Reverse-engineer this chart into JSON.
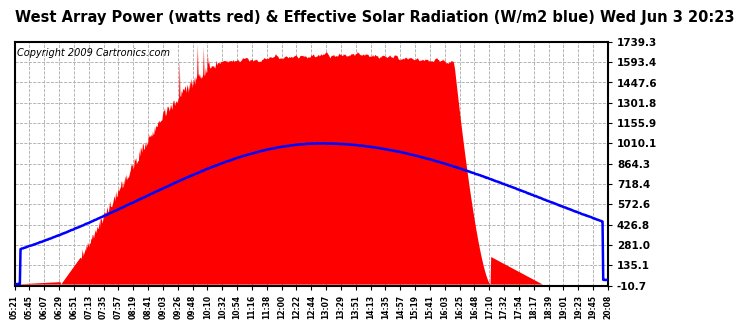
{
  "title": "West Array Power (watts red) & Effective Solar Radiation (W/m2 blue) Wed Jun 3 20:23",
  "copyright": "Copyright 2009 Cartronics.com",
  "ylim": [
    -10.7,
    1739.3
  ],
  "yticks": [
    -10.7,
    135.1,
    281.0,
    426.8,
    572.6,
    718.4,
    864.3,
    1010.1,
    1155.9,
    1301.8,
    1447.6,
    1593.4,
    1739.3
  ],
  "xtick_labels": [
    "05:21",
    "05:45",
    "06:07",
    "06:29",
    "06:51",
    "07:13",
    "07:35",
    "07:57",
    "08:19",
    "08:41",
    "09:03",
    "09:26",
    "09:48",
    "10:10",
    "10:32",
    "10:54",
    "11:16",
    "11:38",
    "12:00",
    "12:22",
    "12:44",
    "13:07",
    "13:29",
    "13:51",
    "14:13",
    "14:35",
    "14:57",
    "15:19",
    "15:41",
    "16:03",
    "16:25",
    "16:48",
    "17:10",
    "17:32",
    "17:54",
    "18:17",
    "18:39",
    "19:01",
    "19:23",
    "19:45",
    "20:08"
  ],
  "background_color": "#ffffff",
  "plot_bg_color": "#ffffff",
  "grid_color": "#aaaaaa",
  "red_color": "#ff0000",
  "blue_color": "#0000ff",
  "title_fontsize": 10.5,
  "copyright_fontsize": 7
}
